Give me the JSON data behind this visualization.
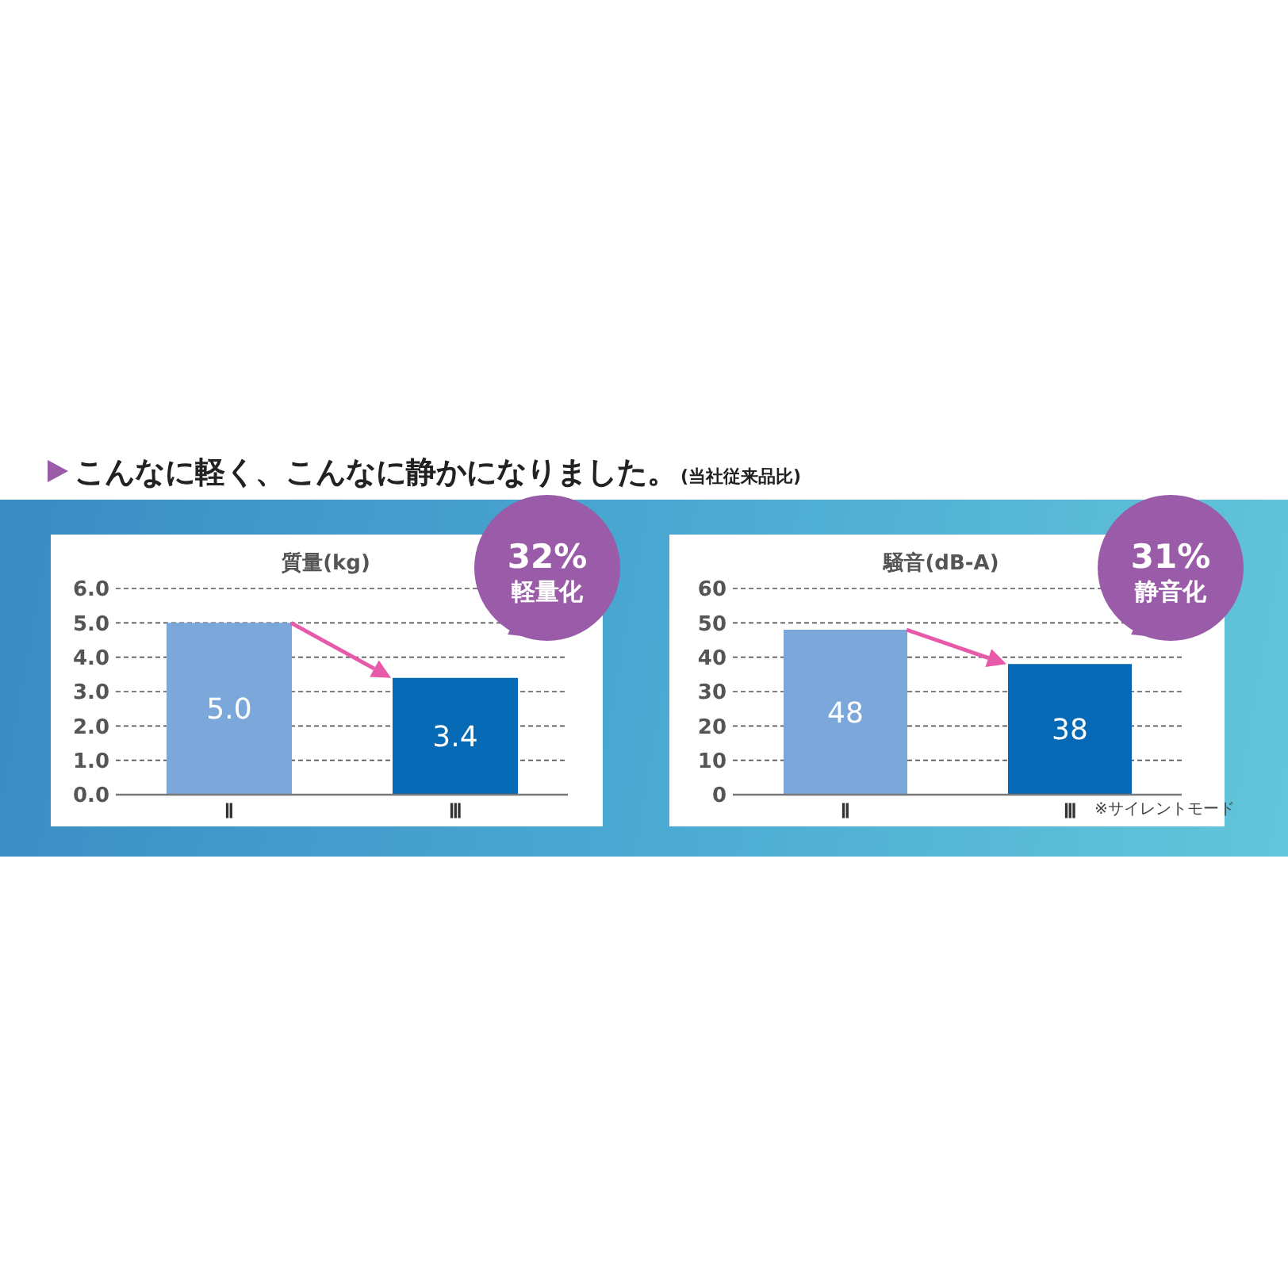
{
  "chart_data": [
    {
      "type": "bar",
      "title": "質量(kg)",
      "categories": [
        "Ⅱ",
        "Ⅲ"
      ],
      "values": [
        5.0,
        3.4
      ],
      "value_labels": [
        "5.0",
        "3.4"
      ],
      "colors": [
        "#7ba7da",
        "#0669b5"
      ],
      "ylim": [
        0,
        6
      ],
      "yticks": [
        {
          "value": 0,
          "label": "0.0"
        },
        {
          "value": 1,
          "label": "1.0"
        },
        {
          "value": 2,
          "label": "2.0"
        },
        {
          "value": 3,
          "label": "3.0"
        },
        {
          "value": 4,
          "label": "4.0"
        },
        {
          "value": 5,
          "label": "5.0"
        },
        {
          "value": 6,
          "label": "6.0"
        }
      ],
      "grid": "y",
      "annotations": [
        "32%",
        "軽量化",
        "こんなに軽く、こんなに静かになりました。",
        "(当社従来品比)"
      ]
    },
    {
      "type": "bar",
      "title": "騒音(dB-A)",
      "categories": [
        "Ⅱ",
        "Ⅲ"
      ],
      "values": [
        48,
        38
      ],
      "data_labels": true,
      "colors": [
        "#7ba7da",
        "#0669b5"
      ],
      "ylim": [
        0,
        60
      ],
      "yticks": [
        0,
        10,
        20,
        30,
        40,
        50,
        60
      ],
      "grid": "y",
      "annotations": [
        "31%",
        "静音化",
        "※サイレントモード"
      ]
    }
  ]
}
